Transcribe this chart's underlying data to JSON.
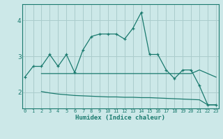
{
  "title": "",
  "xlabel": "Humidex (Indice chaleur)",
  "ylabel": "",
  "bg_color": "#cce8e8",
  "grid_color": "#aacccc",
  "line_color": "#1a7a6e",
  "x_ticks": [
    0,
    1,
    2,
    3,
    4,
    5,
    6,
    7,
    8,
    9,
    10,
    11,
    12,
    13,
    14,
    15,
    16,
    17,
    18,
    19,
    20,
    21,
    22,
    23
  ],
  "y_ticks": [
    2,
    3,
    4
  ],
  "xlim": [
    -0.3,
    23.3
  ],
  "ylim": [
    1.55,
    4.45
  ],
  "series1_x": [
    0,
    1,
    2,
    3,
    4,
    5,
    6,
    7,
    8,
    9,
    10,
    11,
    12,
    13,
    14,
    15,
    16,
    17,
    18,
    19,
    20,
    21,
    22,
    23
  ],
  "series1_y": [
    2.42,
    2.72,
    2.72,
    3.05,
    2.72,
    3.05,
    2.55,
    3.18,
    3.55,
    3.62,
    3.62,
    3.62,
    3.48,
    3.78,
    4.22,
    3.05,
    3.05,
    2.62,
    2.38,
    2.62,
    2.62,
    2.18,
    1.65,
    1.65
  ],
  "series2_x": [
    2,
    3,
    4,
    5,
    6,
    7,
    8,
    9,
    10,
    11,
    12,
    13,
    14,
    15,
    16,
    17,
    18,
    19,
    20,
    21,
    22,
    23
  ],
  "series2_y": [
    2.52,
    2.52,
    2.52,
    2.52,
    2.52,
    2.52,
    2.52,
    2.52,
    2.52,
    2.52,
    2.52,
    2.52,
    2.52,
    2.52,
    2.52,
    2.52,
    2.52,
    2.52,
    2.52,
    2.62,
    2.52,
    2.42
  ],
  "series3_x": [
    2,
    3,
    4,
    5,
    6,
    7,
    8,
    9,
    10,
    11,
    12,
    13,
    14,
    15,
    16,
    17,
    18,
    19,
    20,
    21,
    22,
    23
  ],
  "series3_y": [
    2.02,
    1.98,
    1.95,
    1.93,
    1.91,
    1.9,
    1.89,
    1.88,
    1.87,
    1.87,
    1.86,
    1.86,
    1.85,
    1.85,
    1.84,
    1.83,
    1.82,
    1.81,
    1.8,
    1.79,
    1.65,
    1.65
  ]
}
